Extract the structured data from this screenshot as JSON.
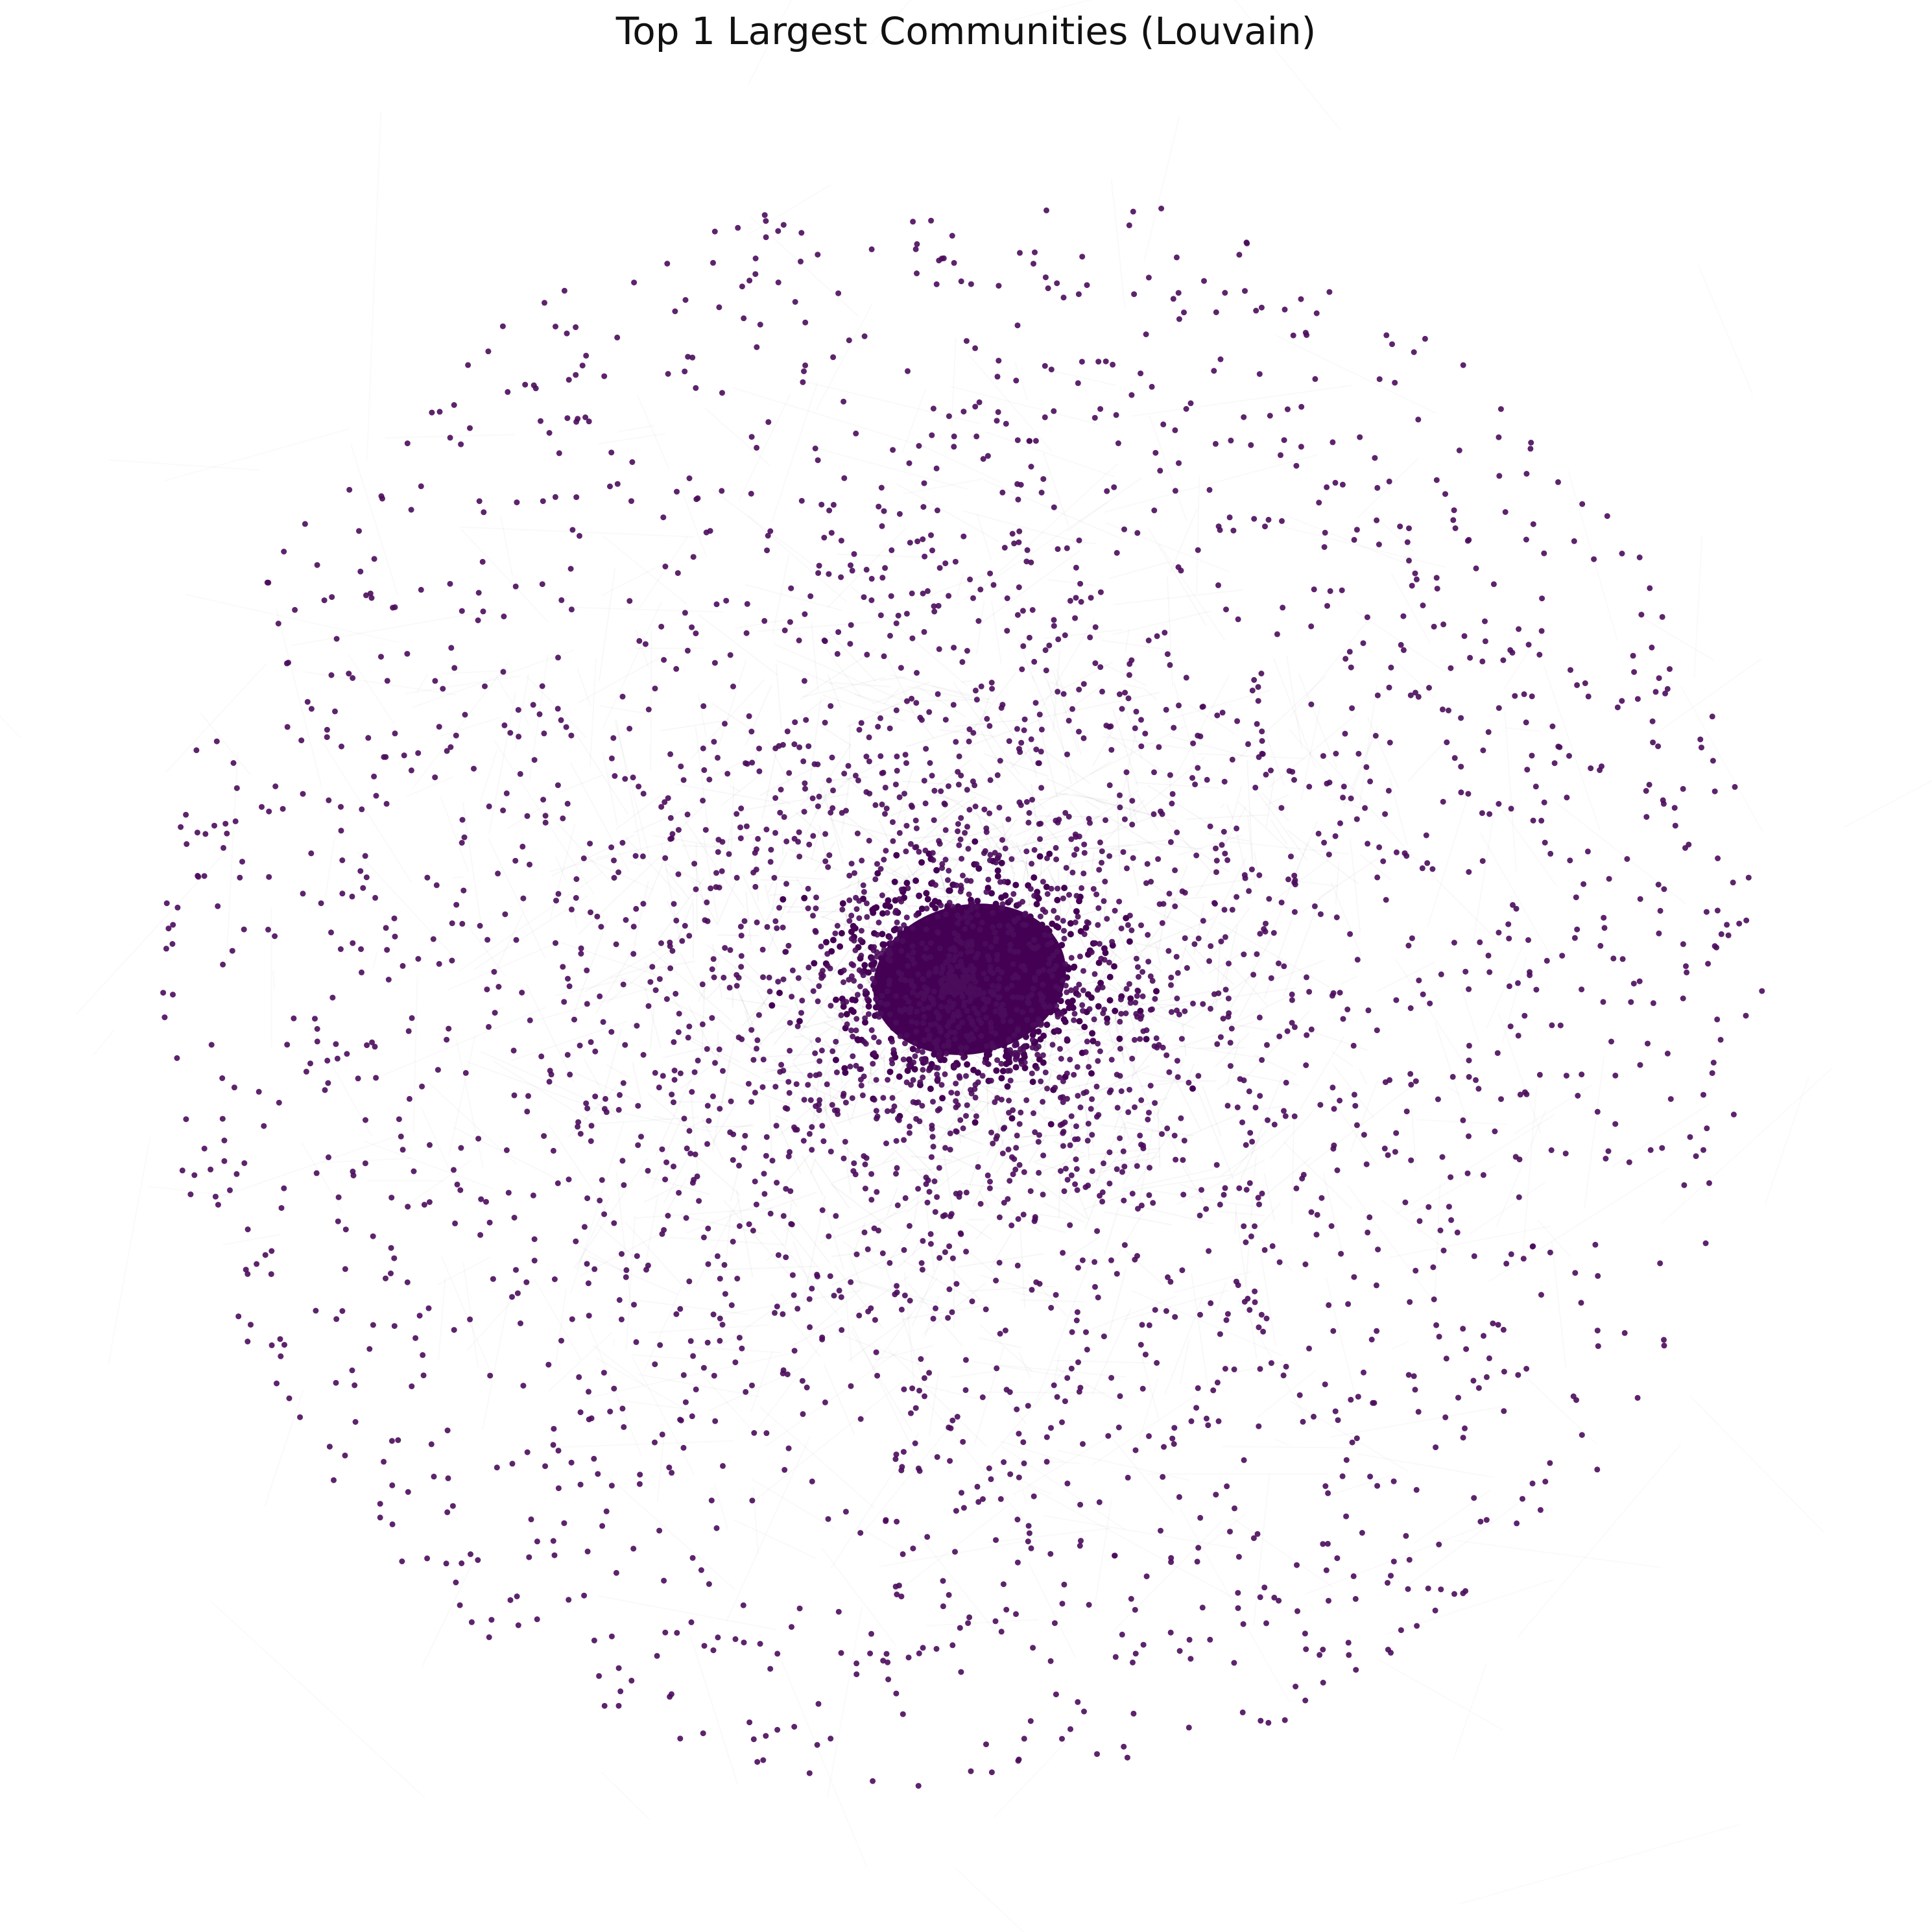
{
  "title": "Top 1 Largest Communities (Louvain)",
  "graph": {
    "layout": "force-directed",
    "communities_shown": 1,
    "node_color": "#4b0c5c",
    "core_color": "#440154",
    "edge_color": "#000000",
    "background": "#ffffff",
    "node_shape": "circle-icon"
  }
}
